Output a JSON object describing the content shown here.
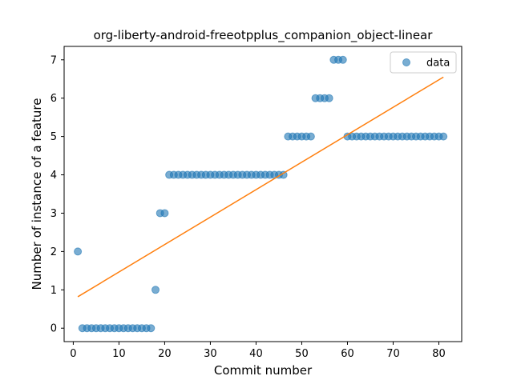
{
  "chart_data": {
    "type": "scatter",
    "title": "org-liberty-android-freeotpplus_companion_object-linear",
    "xlabel": "Commit number",
    "ylabel": "Number of instance of a feature",
    "xlim": [
      -2.0,
      85.0
    ],
    "ylim": [
      -0.35,
      7.35
    ],
    "xticks": [
      0,
      10,
      20,
      30,
      40,
      50,
      60,
      70,
      80
    ],
    "yticks": [
      0,
      1,
      2,
      3,
      4,
      5,
      6,
      7
    ],
    "grid": false,
    "legend": {
      "position": "top-right",
      "entries": [
        "data"
      ]
    },
    "series": [
      {
        "name": "data",
        "kind": "scatter",
        "color": "#1f77b4",
        "points": [
          [
            1,
            2
          ],
          [
            2,
            0
          ],
          [
            3,
            0
          ],
          [
            4,
            0
          ],
          [
            5,
            0
          ],
          [
            6,
            0
          ],
          [
            7,
            0
          ],
          [
            8,
            0
          ],
          [
            9,
            0
          ],
          [
            10,
            0
          ],
          [
            11,
            0
          ],
          [
            12,
            0
          ],
          [
            13,
            0
          ],
          [
            14,
            0
          ],
          [
            15,
            0
          ],
          [
            16,
            0
          ],
          [
            17,
            0
          ],
          [
            18,
            1
          ],
          [
            19,
            3
          ],
          [
            20,
            3
          ],
          [
            21,
            4
          ],
          [
            22,
            4
          ],
          [
            23,
            4
          ],
          [
            24,
            4
          ],
          [
            25,
            4
          ],
          [
            26,
            4
          ],
          [
            27,
            4
          ],
          [
            28,
            4
          ],
          [
            29,
            4
          ],
          [
            30,
            4
          ],
          [
            31,
            4
          ],
          [
            32,
            4
          ],
          [
            33,
            4
          ],
          [
            34,
            4
          ],
          [
            35,
            4
          ],
          [
            36,
            4
          ],
          [
            37,
            4
          ],
          [
            38,
            4
          ],
          [
            39,
            4
          ],
          [
            40,
            4
          ],
          [
            41,
            4
          ],
          [
            42,
            4
          ],
          [
            43,
            4
          ],
          [
            44,
            4
          ],
          [
            45,
            4
          ],
          [
            46,
            4
          ],
          [
            47,
            5
          ],
          [
            48,
            5
          ],
          [
            49,
            5
          ],
          [
            50,
            5
          ],
          [
            51,
            5
          ],
          [
            52,
            5
          ],
          [
            53,
            6
          ],
          [
            54,
            6
          ],
          [
            55,
            6
          ],
          [
            56,
            6
          ],
          [
            57,
            7
          ],
          [
            58,
            7
          ],
          [
            59,
            7
          ],
          [
            60,
            5
          ],
          [
            61,
            5
          ],
          [
            62,
            5
          ],
          [
            63,
            5
          ],
          [
            64,
            5
          ],
          [
            65,
            5
          ],
          [
            66,
            5
          ],
          [
            67,
            5
          ],
          [
            68,
            5
          ],
          [
            69,
            5
          ],
          [
            70,
            5
          ],
          [
            71,
            5
          ],
          [
            72,
            5
          ],
          [
            73,
            5
          ],
          [
            74,
            5
          ],
          [
            75,
            5
          ],
          [
            76,
            5
          ],
          [
            77,
            5
          ],
          [
            78,
            5
          ],
          [
            79,
            5
          ],
          [
            80,
            5
          ],
          [
            81,
            5
          ]
        ]
      },
      {
        "kind": "line",
        "color": "#ff7f0e",
        "points": [
          [
            1,
            0.82
          ],
          [
            81,
            6.55
          ]
        ]
      }
    ]
  }
}
